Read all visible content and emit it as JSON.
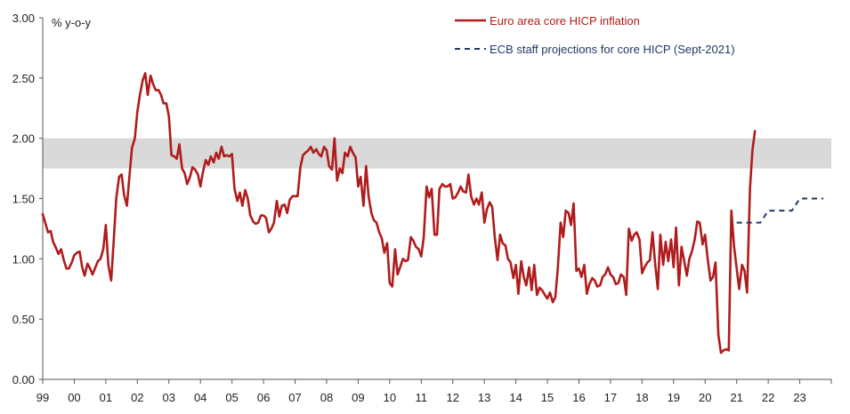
{
  "chart_data": {
    "type": "line",
    "ylabel": "% y-o-y",
    "ylim": [
      0,
      3
    ],
    "yticks": [
      "0.00",
      "0.50",
      "1.00",
      "1.50",
      "2.00",
      "2.50",
      "3.00"
    ],
    "xticks": [
      "99",
      "00",
      "01",
      "02",
      "03",
      "04",
      "05",
      "06",
      "07",
      "08",
      "09",
      "10",
      "11",
      "12",
      "13",
      "14",
      "15",
      "16",
      "17",
      "18",
      "19",
      "20",
      "21",
      "22",
      "23"
    ],
    "xlim": [
      1999.0,
      2024.0
    ],
    "band": {
      "from": 1.75,
      "to": 2.0,
      "color": "#d9d9d9"
    },
    "series": [
      {
        "name": "Euro area core HICP inflation",
        "color": "#b01c1c",
        "style": "solid",
        "points": [
          [
            1999.0,
            1.37
          ],
          [
            1999.08,
            1.3
          ],
          [
            1999.17,
            1.22
          ],
          [
            1999.25,
            1.23
          ],
          [
            1999.33,
            1.14
          ],
          [
            1999.42,
            1.09
          ],
          [
            1999.5,
            1.04
          ],
          [
            1999.58,
            1.08
          ],
          [
            1999.67,
            0.99
          ],
          [
            1999.75,
            0.92
          ],
          [
            1999.83,
            0.92
          ],
          [
            1999.92,
            0.97
          ],
          [
            2000.0,
            1.03
          ],
          [
            2000.08,
            1.05
          ],
          [
            2000.17,
            1.06
          ],
          [
            2000.25,
            0.93
          ],
          [
            2000.33,
            0.86
          ],
          [
            2000.42,
            0.96
          ],
          [
            2000.5,
            0.92
          ],
          [
            2000.58,
            0.87
          ],
          [
            2000.67,
            0.93
          ],
          [
            2000.75,
            0.98
          ],
          [
            2000.83,
            1.0
          ],
          [
            2000.92,
            1.08
          ],
          [
            2001.0,
            1.28
          ],
          [
            2001.08,
            0.95
          ],
          [
            2001.17,
            0.82
          ],
          [
            2001.25,
            1.14
          ],
          [
            2001.33,
            1.5
          ],
          [
            2001.42,
            1.68
          ],
          [
            2001.5,
            1.7
          ],
          [
            2001.58,
            1.53
          ],
          [
            2001.67,
            1.44
          ],
          [
            2001.75,
            1.69
          ],
          [
            2001.83,
            1.92
          ],
          [
            2001.92,
            2.0
          ],
          [
            2002.0,
            2.22
          ],
          [
            2002.08,
            2.36
          ],
          [
            2002.17,
            2.48
          ],
          [
            2002.25,
            2.54
          ],
          [
            2002.33,
            2.36
          ],
          [
            2002.42,
            2.52
          ],
          [
            2002.5,
            2.45
          ],
          [
            2002.58,
            2.4
          ],
          [
            2002.67,
            2.4
          ],
          [
            2002.75,
            2.36
          ],
          [
            2002.83,
            2.29
          ],
          [
            2002.92,
            2.29
          ],
          [
            2003.0,
            2.18
          ],
          [
            2003.08,
            1.86
          ],
          [
            2003.17,
            1.85
          ],
          [
            2003.25,
            1.83
          ],
          [
            2003.33,
            1.95
          ],
          [
            2003.42,
            1.75
          ],
          [
            2003.5,
            1.71
          ],
          [
            2003.58,
            1.62
          ],
          [
            2003.67,
            1.68
          ],
          [
            2003.75,
            1.76
          ],
          [
            2003.83,
            1.74
          ],
          [
            2003.92,
            1.7
          ],
          [
            2004.0,
            1.6
          ],
          [
            2004.08,
            1.72
          ],
          [
            2004.17,
            1.82
          ],
          [
            2004.25,
            1.78
          ],
          [
            2004.33,
            1.85
          ],
          [
            2004.42,
            1.8
          ],
          [
            2004.5,
            1.88
          ],
          [
            2004.58,
            1.83
          ],
          [
            2004.67,
            1.93
          ],
          [
            2004.75,
            1.85
          ],
          [
            2004.83,
            1.86
          ],
          [
            2004.92,
            1.85
          ],
          [
            2005.0,
            1.87
          ],
          [
            2005.08,
            1.58
          ],
          [
            2005.17,
            1.48
          ],
          [
            2005.25,
            1.55
          ],
          [
            2005.33,
            1.44
          ],
          [
            2005.42,
            1.57
          ],
          [
            2005.5,
            1.5
          ],
          [
            2005.58,
            1.36
          ],
          [
            2005.67,
            1.31
          ],
          [
            2005.75,
            1.29
          ],
          [
            2005.83,
            1.3
          ],
          [
            2005.92,
            1.36
          ],
          [
            2006.0,
            1.36
          ],
          [
            2006.08,
            1.34
          ],
          [
            2006.17,
            1.22
          ],
          [
            2006.25,
            1.25
          ],
          [
            2006.33,
            1.3
          ],
          [
            2006.42,
            1.48
          ],
          [
            2006.5,
            1.35
          ],
          [
            2006.58,
            1.44
          ],
          [
            2006.67,
            1.45
          ],
          [
            2006.75,
            1.38
          ],
          [
            2006.83,
            1.49
          ],
          [
            2006.92,
            1.52
          ],
          [
            2007.0,
            1.52
          ],
          [
            2007.08,
            1.52
          ],
          [
            2007.17,
            1.76
          ],
          [
            2007.25,
            1.86
          ],
          [
            2007.33,
            1.88
          ],
          [
            2007.42,
            1.9
          ],
          [
            2007.5,
            1.93
          ],
          [
            2007.58,
            1.88
          ],
          [
            2007.67,
            1.91
          ],
          [
            2007.75,
            1.87
          ],
          [
            2007.83,
            1.85
          ],
          [
            2007.92,
            1.93
          ],
          [
            2008.0,
            1.9
          ],
          [
            2008.08,
            1.77
          ],
          [
            2008.17,
            1.74
          ],
          [
            2008.25,
            2.0
          ],
          [
            2008.33,
            1.65
          ],
          [
            2008.42,
            1.75
          ],
          [
            2008.5,
            1.71
          ],
          [
            2008.58,
            1.88
          ],
          [
            2008.67,
            1.85
          ],
          [
            2008.75,
            1.93
          ],
          [
            2008.83,
            1.88
          ],
          [
            2008.92,
            1.84
          ],
          [
            2009.0,
            1.6
          ],
          [
            2009.08,
            1.68
          ],
          [
            2009.17,
            1.44
          ],
          [
            2009.25,
            1.77
          ],
          [
            2009.33,
            1.52
          ],
          [
            2009.42,
            1.38
          ],
          [
            2009.5,
            1.32
          ],
          [
            2009.58,
            1.3
          ],
          [
            2009.67,
            1.22
          ],
          [
            2009.75,
            1.17
          ],
          [
            2009.83,
            1.05
          ],
          [
            2009.92,
            1.13
          ],
          [
            2010.0,
            0.8
          ],
          [
            2010.08,
            0.77
          ],
          [
            2010.17,
            1.08
          ],
          [
            2010.25,
            0.87
          ],
          [
            2010.33,
            0.93
          ],
          [
            2010.42,
            1.0
          ],
          [
            2010.5,
            0.98
          ],
          [
            2010.58,
            0.99
          ],
          [
            2010.67,
            1.18
          ],
          [
            2010.75,
            1.15
          ],
          [
            2010.83,
            1.1
          ],
          [
            2010.92,
            1.08
          ],
          [
            2011.0,
            1.02
          ],
          [
            2011.08,
            1.18
          ],
          [
            2011.17,
            1.6
          ],
          [
            2011.25,
            1.51
          ],
          [
            2011.33,
            1.58
          ],
          [
            2011.42,
            1.2
          ],
          [
            2011.5,
            1.2
          ],
          [
            2011.58,
            1.58
          ],
          [
            2011.67,
            1.62
          ],
          [
            2011.75,
            1.6
          ],
          [
            2011.83,
            1.6
          ],
          [
            2011.92,
            1.62
          ],
          [
            2012.0,
            1.5
          ],
          [
            2012.08,
            1.51
          ],
          [
            2012.17,
            1.55
          ],
          [
            2012.25,
            1.6
          ],
          [
            2012.33,
            1.56
          ],
          [
            2012.42,
            1.55
          ],
          [
            2012.5,
            1.7
          ],
          [
            2012.58,
            1.52
          ],
          [
            2012.67,
            1.45
          ],
          [
            2012.75,
            1.5
          ],
          [
            2012.83,
            1.45
          ],
          [
            2012.92,
            1.55
          ],
          [
            2013.0,
            1.3
          ],
          [
            2013.08,
            1.41
          ],
          [
            2013.17,
            1.47
          ],
          [
            2013.25,
            1.43
          ],
          [
            2013.33,
            1.18
          ],
          [
            2013.42,
            0.99
          ],
          [
            2013.5,
            1.2
          ],
          [
            2013.58,
            1.13
          ],
          [
            2013.67,
            1.11
          ],
          [
            2013.75,
            1.0
          ],
          [
            2013.83,
            0.97
          ],
          [
            2013.92,
            0.84
          ],
          [
            2014.0,
            0.95
          ],
          [
            2014.08,
            0.71
          ],
          [
            2014.17,
            0.98
          ],
          [
            2014.25,
            0.85
          ],
          [
            2014.33,
            0.78
          ],
          [
            2014.42,
            0.93
          ],
          [
            2014.5,
            0.74
          ],
          [
            2014.58,
            0.95
          ],
          [
            2014.67,
            0.7
          ],
          [
            2014.75,
            0.76
          ],
          [
            2014.83,
            0.74
          ],
          [
            2014.92,
            0.7
          ],
          [
            2015.0,
            0.67
          ],
          [
            2015.08,
            0.72
          ],
          [
            2015.17,
            0.64
          ],
          [
            2015.25,
            0.68
          ],
          [
            2015.33,
            0.92
          ],
          [
            2015.42,
            1.3
          ],
          [
            2015.5,
            1.18
          ],
          [
            2015.58,
            1.4
          ],
          [
            2015.67,
            1.38
          ],
          [
            2015.75,
            1.28
          ],
          [
            2015.83,
            1.46
          ],
          [
            2015.92,
            0.9
          ],
          [
            2016.0,
            0.92
          ],
          [
            2016.08,
            0.85
          ],
          [
            2016.17,
            0.95
          ],
          [
            2016.25,
            0.71
          ],
          [
            2016.33,
            0.79
          ],
          [
            2016.42,
            0.84
          ],
          [
            2016.5,
            0.82
          ],
          [
            2016.58,
            0.77
          ],
          [
            2016.67,
            0.78
          ],
          [
            2016.75,
            0.85
          ],
          [
            2016.83,
            0.87
          ],
          [
            2016.92,
            0.93
          ],
          [
            2017.0,
            0.87
          ],
          [
            2017.08,
            0.85
          ],
          [
            2017.17,
            0.79
          ],
          [
            2017.25,
            0.8
          ],
          [
            2017.33,
            0.87
          ],
          [
            2017.42,
            0.85
          ],
          [
            2017.5,
            0.7
          ],
          [
            2017.58,
            1.25
          ],
          [
            2017.67,
            1.15
          ],
          [
            2017.75,
            1.2
          ],
          [
            2017.83,
            1.22
          ],
          [
            2017.92,
            1.16
          ],
          [
            2018.0,
            0.88
          ],
          [
            2018.08,
            0.93
          ],
          [
            2018.17,
            0.97
          ],
          [
            2018.25,
            0.99
          ],
          [
            2018.33,
            1.22
          ],
          [
            2018.42,
            0.95
          ],
          [
            2018.5,
            0.75
          ],
          [
            2018.58,
            1.2
          ],
          [
            2018.67,
            0.95
          ],
          [
            2018.75,
            1.14
          ],
          [
            2018.83,
            0.98
          ],
          [
            2018.92,
            1.16
          ],
          [
            2019.0,
            0.93
          ],
          [
            2019.08,
            1.26
          ],
          [
            2019.17,
            0.78
          ],
          [
            2019.25,
            1.1
          ],
          [
            2019.33,
            0.99
          ],
          [
            2019.42,
            0.86
          ],
          [
            2019.5,
            1.0
          ],
          [
            2019.58,
            1.06
          ],
          [
            2019.67,
            1.16
          ],
          [
            2019.75,
            1.31
          ],
          [
            2019.83,
            1.3
          ],
          [
            2019.92,
            1.12
          ],
          [
            2020.0,
            1.2
          ],
          [
            2020.08,
            1.0
          ],
          [
            2020.17,
            0.82
          ],
          [
            2020.25,
            0.85
          ],
          [
            2020.33,
            0.97
          ],
          [
            2020.42,
            0.37
          ],
          [
            2020.5,
            0.22
          ],
          [
            2020.58,
            0.24
          ],
          [
            2020.67,
            0.25
          ],
          [
            2020.75,
            0.24
          ],
          [
            2020.83,
            1.4
          ],
          [
            2020.92,
            1.1
          ],
          [
            2021.0,
            0.92
          ],
          [
            2021.08,
            0.75
          ],
          [
            2021.17,
            0.95
          ],
          [
            2021.25,
            0.9
          ],
          [
            2021.33,
            0.72
          ],
          [
            2021.42,
            1.58
          ],
          [
            2021.5,
            1.9
          ],
          [
            2021.58,
            2.06
          ]
        ]
      },
      {
        "name": "ECB staff projections for core HICP (Sept-2021)",
        "color": "#1f3864",
        "style": "dashed",
        "points": [
          [
            2021.0,
            1.3
          ],
          [
            2021.25,
            1.3
          ],
          [
            2021.5,
            1.3
          ],
          [
            2021.75,
            1.3
          ],
          [
            2022.0,
            1.4
          ],
          [
            2022.25,
            1.4
          ],
          [
            2022.5,
            1.4
          ],
          [
            2022.75,
            1.4
          ],
          [
            2023.0,
            1.5
          ],
          [
            2023.25,
            1.5
          ],
          [
            2023.5,
            1.5
          ],
          [
            2023.75,
            1.5
          ]
        ]
      }
    ]
  }
}
